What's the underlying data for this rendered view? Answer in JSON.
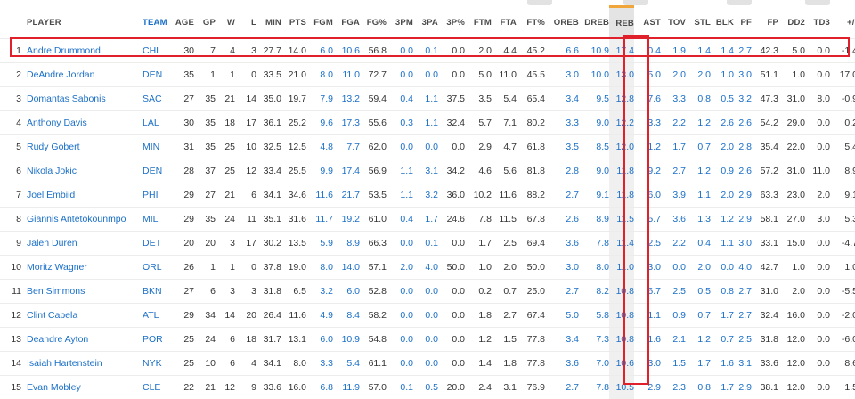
{
  "colors": {
    "accent_link": "#1a6fc7",
    "highlight": "#e0202a",
    "sort_indicator": "#f0a63a"
  },
  "headers": [
    "",
    "PLAYER",
    "TEAM",
    "AGE",
    "GP",
    "W",
    "L",
    "MIN",
    "PTS",
    "FGM",
    "FGA",
    "FG%",
    "3PM",
    "3PA",
    "3P%",
    "FTM",
    "FTA",
    "FT%",
    "OREB",
    "DREB",
    "REB",
    "AST",
    "TOV",
    "STL",
    "BLK",
    "PF",
    "FP",
    "DD2",
    "TD3",
    "+/-"
  ],
  "rows": [
    [
      "1",
      "Andre Drummond",
      "CHI",
      "30",
      "7",
      "4",
      "3",
      "27.7",
      "14.0",
      "6.0",
      "10.6",
      "56.8",
      "0.0",
      "0.1",
      "0.0",
      "2.0",
      "4.4",
      "45.2",
      "6.6",
      "10.9",
      "17.4",
      "0.4",
      "1.9",
      "1.4",
      "1.4",
      "2.7",
      "42.3",
      "5.0",
      "0.0",
      "-1.4"
    ],
    [
      "2",
      "DeAndre Jordan",
      "DEN",
      "35",
      "1",
      "1",
      "0",
      "33.5",
      "21.0",
      "8.0",
      "11.0",
      "72.7",
      "0.0",
      "0.0",
      "0.0",
      "5.0",
      "11.0",
      "45.5",
      "3.0",
      "10.0",
      "13.0",
      "5.0",
      "2.0",
      "2.0",
      "1.0",
      "3.0",
      "51.1",
      "1.0",
      "0.0",
      "17.0"
    ],
    [
      "3",
      "Domantas Sabonis",
      "SAC",
      "27",
      "35",
      "21",
      "14",
      "35.0",
      "19.7",
      "7.9",
      "13.2",
      "59.4",
      "0.4",
      "1.1",
      "37.5",
      "3.5",
      "5.4",
      "65.4",
      "3.4",
      "9.5",
      "12.8",
      "7.6",
      "3.3",
      "0.8",
      "0.5",
      "3.2",
      "47.3",
      "31.0",
      "8.0",
      "-0.9"
    ],
    [
      "4",
      "Anthony Davis",
      "LAL",
      "30",
      "35",
      "18",
      "17",
      "36.1",
      "25.2",
      "9.6",
      "17.3",
      "55.6",
      "0.3",
      "1.1",
      "32.4",
      "5.7",
      "7.1",
      "80.2",
      "3.3",
      "9.0",
      "12.2",
      "3.3",
      "2.2",
      "1.2",
      "2.6",
      "2.6",
      "54.2",
      "29.0",
      "0.0",
      "0.2"
    ],
    [
      "5",
      "Rudy Gobert",
      "MIN",
      "31",
      "35",
      "25",
      "10",
      "32.5",
      "12.5",
      "4.8",
      "7.7",
      "62.0",
      "0.0",
      "0.0",
      "0.0",
      "2.9",
      "4.7",
      "61.8",
      "3.5",
      "8.5",
      "12.0",
      "1.2",
      "1.7",
      "0.7",
      "2.0",
      "2.8",
      "35.4",
      "22.0",
      "0.0",
      "5.4"
    ],
    [
      "6",
      "Nikola Jokic",
      "DEN",
      "28",
      "37",
      "25",
      "12",
      "33.4",
      "25.5",
      "9.9",
      "17.4",
      "56.9",
      "1.1",
      "3.1",
      "34.2",
      "4.6",
      "5.6",
      "81.8",
      "2.8",
      "9.0",
      "11.8",
      "9.2",
      "2.7",
      "1.2",
      "0.9",
      "2.6",
      "57.2",
      "31.0",
      "11.0",
      "8.9"
    ],
    [
      "7",
      "Joel Embiid",
      "PHI",
      "29",
      "27",
      "21",
      "6",
      "34.1",
      "34.6",
      "11.6",
      "21.7",
      "53.5",
      "1.1",
      "3.2",
      "36.0",
      "10.2",
      "11.6",
      "88.2",
      "2.7",
      "9.1",
      "11.8",
      "6.0",
      "3.9",
      "1.1",
      "2.0",
      "2.9",
      "63.3",
      "23.0",
      "2.0",
      "9.1"
    ],
    [
      "8",
      "Giannis Antetokounmpo",
      "MIL",
      "29",
      "35",
      "24",
      "11",
      "35.1",
      "31.6",
      "11.7",
      "19.2",
      "61.0",
      "0.4",
      "1.7",
      "24.6",
      "7.8",
      "11.5",
      "67.8",
      "2.6",
      "8.9",
      "11.5",
      "5.7",
      "3.6",
      "1.3",
      "1.2",
      "2.9",
      "58.1",
      "27.0",
      "3.0",
      "5.3"
    ],
    [
      "9",
      "Jalen Duren",
      "DET",
      "20",
      "20",
      "3",
      "17",
      "30.2",
      "13.5",
      "5.9",
      "8.9",
      "66.3",
      "0.0",
      "0.1",
      "0.0",
      "1.7",
      "2.5",
      "69.4",
      "3.6",
      "7.8",
      "11.4",
      "2.5",
      "2.2",
      "0.4",
      "1.1",
      "3.0",
      "33.1",
      "15.0",
      "0.0",
      "-4.7"
    ],
    [
      "10",
      "Moritz Wagner",
      "ORL",
      "26",
      "1",
      "1",
      "0",
      "37.8",
      "19.0",
      "8.0",
      "14.0",
      "57.1",
      "2.0",
      "4.0",
      "50.0",
      "1.0",
      "2.0",
      "50.0",
      "3.0",
      "8.0",
      "11.0",
      "3.0",
      "0.0",
      "2.0",
      "0.0",
      "4.0",
      "42.7",
      "1.0",
      "0.0",
      "1.0"
    ],
    [
      "11",
      "Ben Simmons",
      "BKN",
      "27",
      "6",
      "3",
      "3",
      "31.8",
      "6.5",
      "3.2",
      "6.0",
      "52.8",
      "0.0",
      "0.0",
      "0.0",
      "0.2",
      "0.7",
      "25.0",
      "2.7",
      "8.2",
      "10.8",
      "6.7",
      "2.5",
      "0.5",
      "0.8",
      "2.7",
      "31.0",
      "2.0",
      "0.0",
      "-5.5"
    ],
    [
      "12",
      "Clint Capela",
      "ATL",
      "29",
      "34",
      "14",
      "20",
      "26.4",
      "11.6",
      "4.9",
      "8.4",
      "58.2",
      "0.0",
      "0.0",
      "0.0",
      "1.8",
      "2.7",
      "67.4",
      "5.0",
      "5.8",
      "10.8",
      "1.1",
      "0.9",
      "0.7",
      "1.7",
      "2.7",
      "32.4",
      "16.0",
      "0.0",
      "-2.0"
    ],
    [
      "13",
      "Deandre Ayton",
      "POR",
      "25",
      "24",
      "6",
      "18",
      "31.7",
      "13.1",
      "6.0",
      "10.9",
      "54.8",
      "0.0",
      "0.0",
      "0.0",
      "1.2",
      "1.5",
      "77.8",
      "3.4",
      "7.3",
      "10.8",
      "1.6",
      "2.1",
      "1.2",
      "0.7",
      "2.5",
      "31.8",
      "12.0",
      "0.0",
      "-6.0"
    ],
    [
      "14",
      "Isaiah Hartenstein",
      "NYK",
      "25",
      "10",
      "6",
      "4",
      "34.1",
      "8.0",
      "3.3",
      "5.4",
      "61.1",
      "0.0",
      "0.0",
      "0.0",
      "1.4",
      "1.8",
      "77.8",
      "3.6",
      "7.0",
      "10.6",
      "3.0",
      "1.5",
      "1.7",
      "1.6",
      "3.1",
      "33.6",
      "12.0",
      "0.0",
      "8.6"
    ],
    [
      "15",
      "Evan Mobley",
      "CLE",
      "22",
      "21",
      "12",
      "9",
      "33.6",
      "16.0",
      "6.8",
      "11.9",
      "57.0",
      "0.1",
      "0.5",
      "20.0",
      "2.4",
      "3.1",
      "76.9",
      "2.7",
      "7.8",
      "10.5",
      "2.9",
      "2.3",
      "0.8",
      "1.7",
      "2.9",
      "38.1",
      "12.0",
      "0.0",
      "1.5"
    ]
  ]
}
